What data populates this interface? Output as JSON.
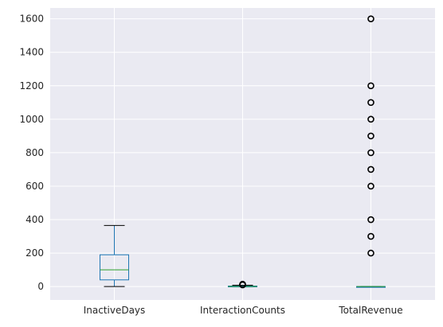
{
  "chart_data": {
    "type": "boxplot",
    "title": "",
    "xlabel": "",
    "ylabel": "",
    "ylim": [
      -80,
      1665
    ],
    "yticks": [
      0,
      200,
      400,
      600,
      800,
      1000,
      1200,
      1400,
      1600
    ],
    "grid": true,
    "legend": "none",
    "categories": [
      "InactiveDays",
      "InteractionCounts",
      "TotalRevenue"
    ],
    "boxes": [
      {
        "category": "InactiveDays",
        "whisker_low": 0,
        "q1": 40,
        "median": 100,
        "q3": 190,
        "whisker_high": 365,
        "outliers": []
      },
      {
        "category": "InteractionCounts",
        "whisker_low": 0,
        "q1": 0,
        "median": 1,
        "q3": 3,
        "whisker_high": 8,
        "outliers": [
          10,
          12,
          14
        ]
      },
      {
        "category": "TotalRevenue",
        "whisker_low": 0,
        "q1": 0,
        "median": 0,
        "q3": 0,
        "whisker_high": 0,
        "outliers": [
          200,
          300,
          400,
          600,
          700,
          800,
          900,
          1000,
          1100,
          1200,
          1600
        ]
      }
    ],
    "colors": {
      "background": "#eaeaf2",
      "grid": "#ffffff",
      "box": "#1f77b4",
      "median": "#2ca02c",
      "cap": "#000000",
      "outlier": "#000000"
    }
  }
}
